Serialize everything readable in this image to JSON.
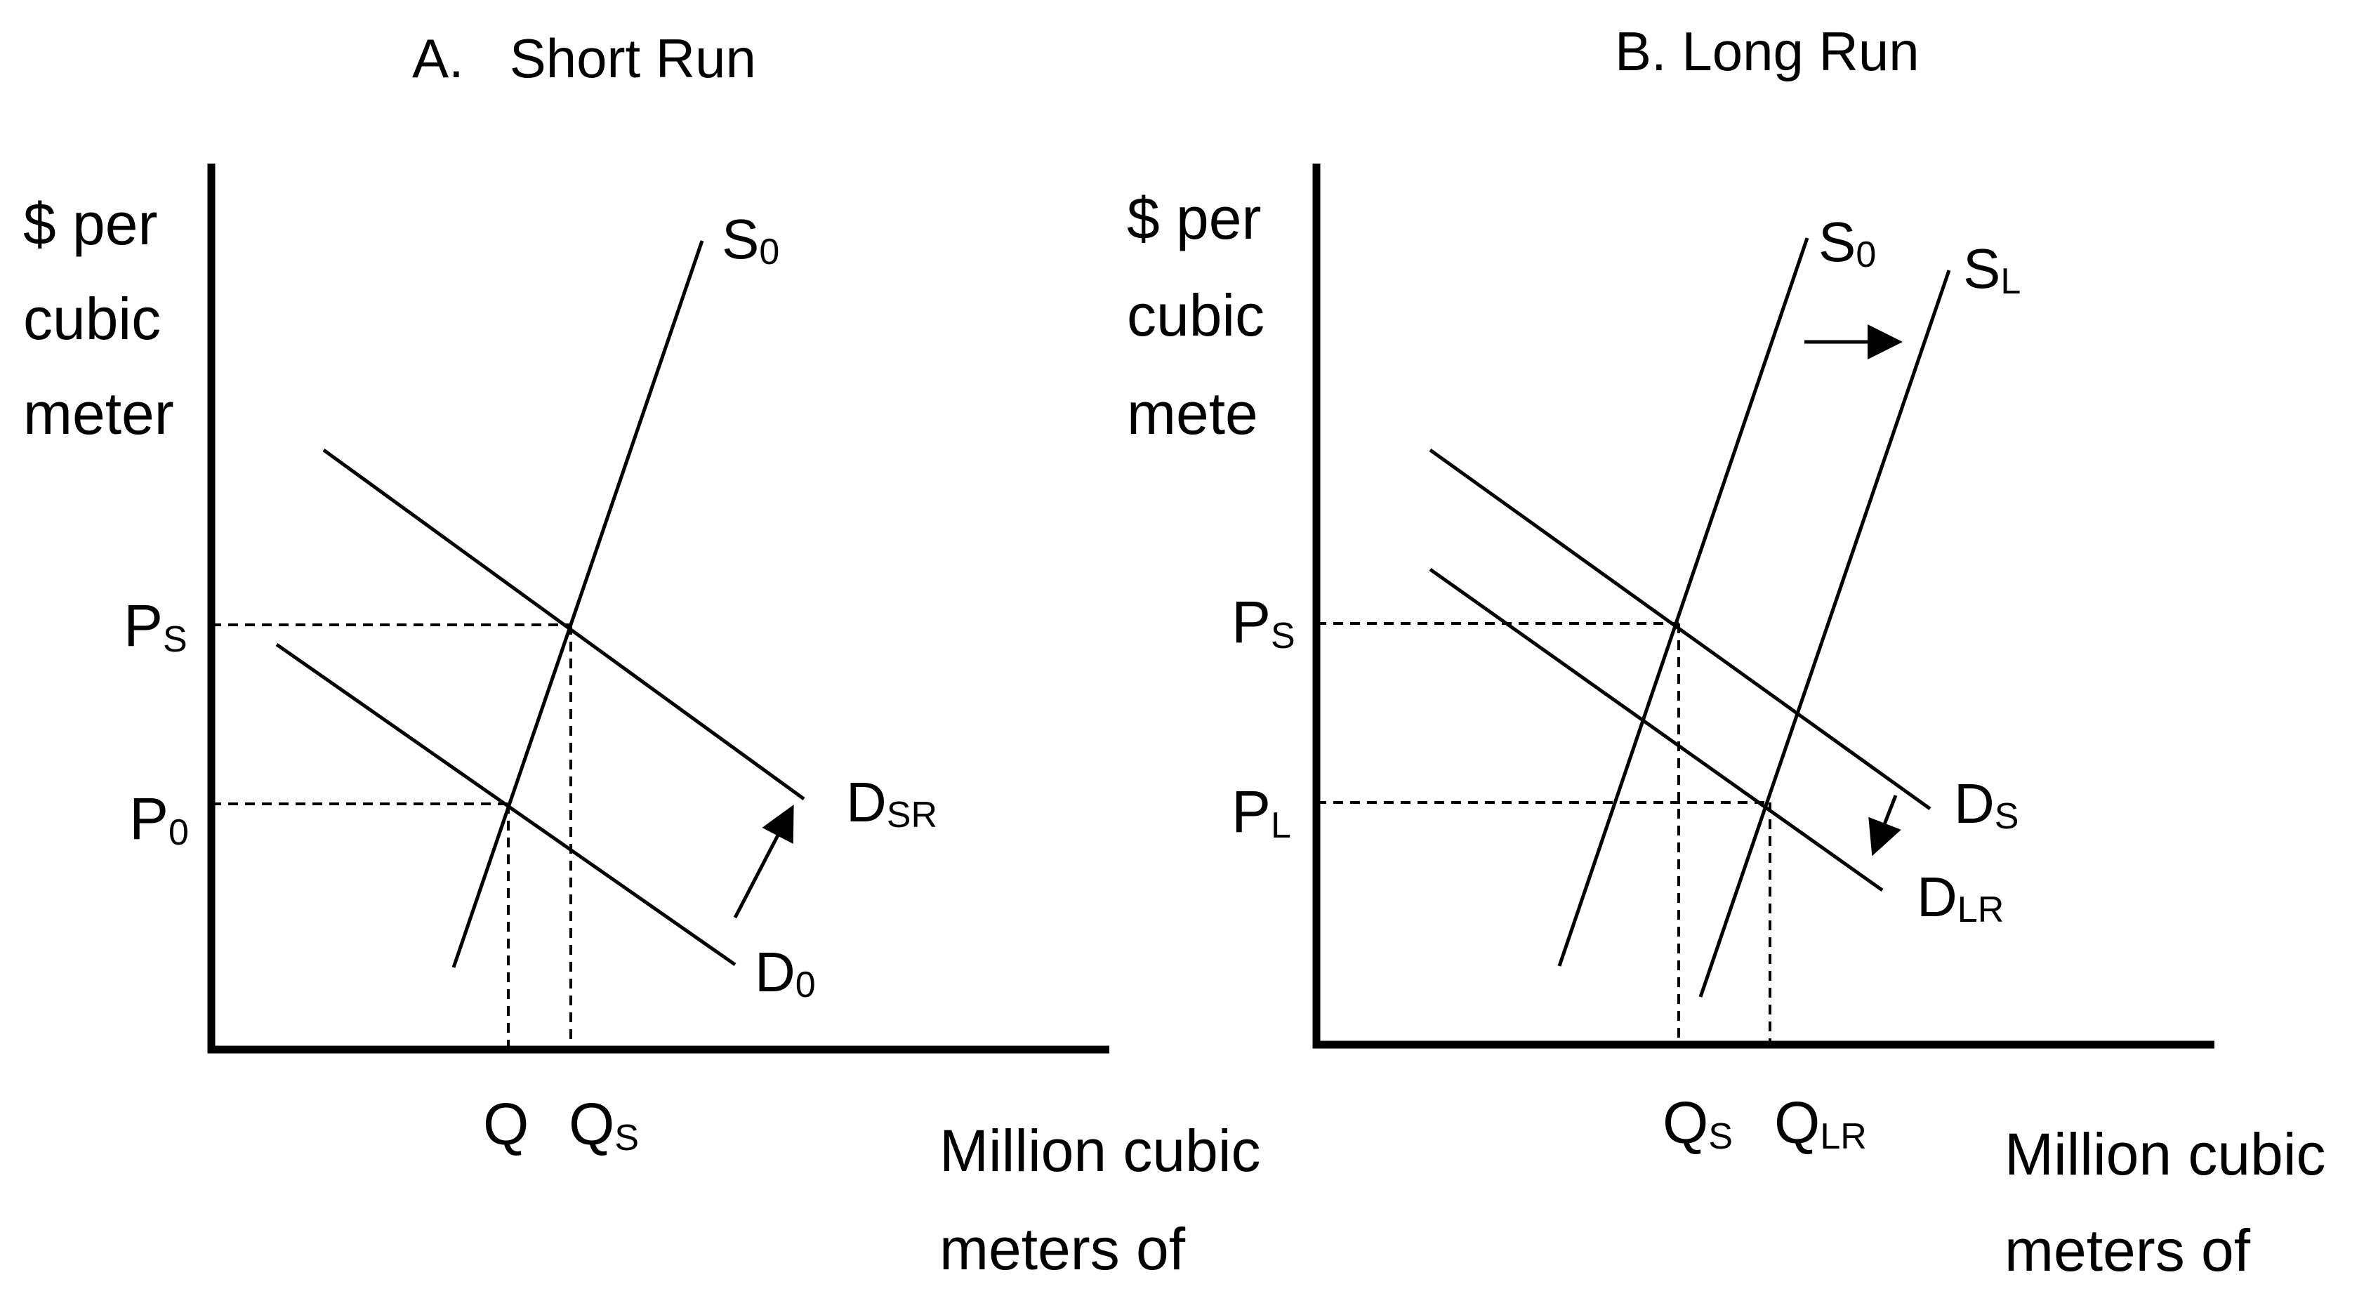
{
  "panel_a": {
    "title": "A.   Short Run",
    "y_label_lines": [
      "$ per",
      "cubic",
      "meter"
    ],
    "x_label_lines": [
      "Million cubic",
      "meters of"
    ],
    "price_labels": {
      "upper": "P",
      "upper_sub": "S",
      "lower": "P",
      "lower_sub": "0"
    },
    "quantity_labels": {
      "first": "Q",
      "second": "Q",
      "second_sub": "S"
    },
    "curves": {
      "supply": {
        "main": "S",
        "sub": "0"
      },
      "demand_shifted": {
        "main": "D",
        "sub": "SR"
      },
      "demand_original": {
        "main": "D",
        "sub": "0"
      }
    }
  },
  "panel_b": {
    "title": "B. Long Run",
    "y_label_lines": [
      "$ per",
      "cubic",
      "mete"
    ],
    "x_label_lines": [
      "Million cubic",
      "meters of"
    ],
    "price_labels": {
      "upper": "P",
      "upper_sub": "S",
      "lower": "P",
      "lower_sub": "L"
    },
    "quantity_labels": {
      "first": "Q",
      "first_sub": "S",
      "second": "Q",
      "second_sub": "LR"
    },
    "curves": {
      "supply_original": {
        "main": "S",
        "sub": "0"
      },
      "supply_long": {
        "main": "S",
        "sub": "L"
      },
      "demand_short": {
        "main": "D",
        "sub": "S"
      },
      "demand_long": {
        "main": "D",
        "sub": "LR"
      }
    }
  }
}
